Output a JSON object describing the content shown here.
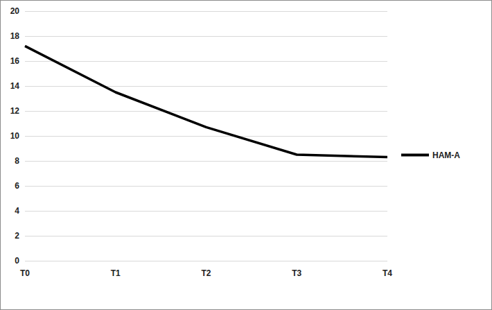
{
  "chart_data": {
    "type": "line",
    "categories": [
      "T0",
      "T1",
      "T2",
      "T3",
      "T4"
    ],
    "series": [
      {
        "name": "HAM-A",
        "color": "#000000",
        "values": [
          17.2,
          13.5,
          10.7,
          8.5,
          8.3
        ],
        "marker": "none",
        "line_style": "solid"
      }
    ],
    "ylim": [
      0,
      20
    ],
    "yticks": [
      0,
      2,
      4,
      6,
      8,
      10,
      12,
      14,
      16,
      18,
      20
    ],
    "grid": true,
    "legend": "right"
  }
}
